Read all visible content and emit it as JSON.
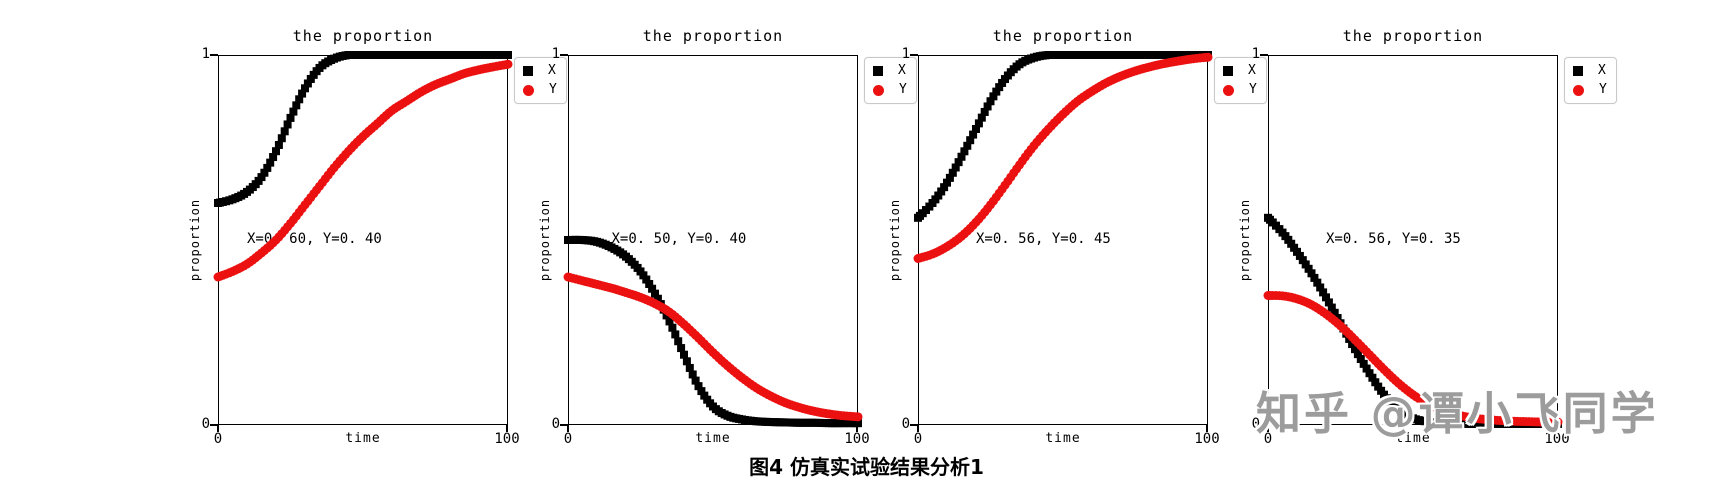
{
  "figure": {
    "caption": "图4  仿真实试验结果分析1",
    "watermark": "知乎 @谭小飞同学"
  },
  "colors": {
    "x_series": "#000000",
    "y_series": "#ec1111",
    "legend_border": "#c9c9c9",
    "watermark_gray": "#9c9c9c"
  },
  "chart_data": [
    {
      "type": "line",
      "title": "the proportion",
      "xlabel": "time",
      "ylabel": "proportion",
      "xlim": [
        0,
        100
      ],
      "ylim": [
        0,
        1
      ],
      "grid": false,
      "legend_position": "outside-upper-right",
      "xtick_labels": [
        "0",
        "100"
      ],
      "ytick_labels": [
        "0",
        "1"
      ],
      "legend": [
        "X",
        "Y"
      ],
      "legend_markers": [
        "black-square",
        "red-circle"
      ],
      "annotation": "X=0. 60, Y=0. 40",
      "annotation_xy": [
        10,
        0.5
      ],
      "x": [
        0,
        5,
        10,
        15,
        20,
        25,
        30,
        35,
        40,
        45,
        50,
        55,
        60,
        65,
        70,
        75,
        80,
        85,
        90,
        95,
        100
      ],
      "series": [
        {
          "name": "X",
          "color_key": "x_series",
          "marker": "square",
          "values": [
            0.6,
            0.61,
            0.63,
            0.67,
            0.74,
            0.83,
            0.91,
            0.965,
            0.99,
            1.0,
            1.0,
            1.0,
            1.0,
            1.0,
            1.0,
            1.0,
            1.0,
            1.0,
            1.0,
            1.0,
            1.0
          ]
        },
        {
          "name": "Y",
          "color_key": "y_series",
          "marker": "circle",
          "values": [
            0.4,
            0.415,
            0.435,
            0.465,
            0.5,
            0.545,
            0.595,
            0.645,
            0.695,
            0.74,
            0.78,
            0.815,
            0.85,
            0.875,
            0.9,
            0.92,
            0.935,
            0.95,
            0.96,
            0.968,
            0.975
          ]
        }
      ]
    },
    {
      "type": "line",
      "title": "the proportion",
      "xlabel": "time",
      "ylabel": "proportion",
      "xlim": [
        0,
        100
      ],
      "ylim": [
        0,
        1
      ],
      "grid": false,
      "legend_position": "outside-upper-right",
      "xtick_labels": [
        "0",
        "100"
      ],
      "ytick_labels": [
        "0",
        "1"
      ],
      "legend": [
        "X",
        "Y"
      ],
      "legend_markers": [
        "black-square",
        "red-circle"
      ],
      "annotation": "X=0. 50, Y=0. 40",
      "annotation_xy": [
        15,
        0.5
      ],
      "x": [
        0,
        5,
        10,
        15,
        20,
        25,
        30,
        35,
        40,
        45,
        50,
        55,
        60,
        65,
        70,
        75,
        80,
        85,
        90,
        95,
        100
      ],
      "series": [
        {
          "name": "X",
          "color_key": "x_series",
          "marker": "square",
          "values": [
            0.5,
            0.5,
            0.495,
            0.48,
            0.455,
            0.415,
            0.355,
            0.28,
            0.19,
            0.105,
            0.05,
            0.025,
            0.015,
            0.01,
            0.008,
            0.007,
            0.006,
            0.006,
            0.005,
            0.005,
            0.005
          ]
        },
        {
          "name": "Y",
          "color_key": "y_series",
          "marker": "circle",
          "values": [
            0.4,
            0.39,
            0.38,
            0.37,
            0.358,
            0.345,
            0.328,
            0.305,
            0.272,
            0.235,
            0.196,
            0.16,
            0.128,
            0.1,
            0.078,
            0.06,
            0.047,
            0.037,
            0.03,
            0.025,
            0.022
          ]
        }
      ]
    },
    {
      "type": "line",
      "title": "the proportion",
      "xlabel": "time",
      "ylabel": "proportion",
      "xlim": [
        0,
        100
      ],
      "ylim": [
        0,
        1
      ],
      "grid": false,
      "legend_position": "outside-upper-right",
      "xtick_labels": [
        "0",
        "100"
      ],
      "ytick_labels": [
        "0",
        "1"
      ],
      "legend": [
        "X",
        "Y"
      ],
      "legend_markers": [
        "black-square",
        "red-circle"
      ],
      "annotation": "X=0. 56, Y=0. 45",
      "annotation_xy": [
        20,
        0.5
      ],
      "x": [
        0,
        5,
        10,
        15,
        20,
        25,
        30,
        35,
        40,
        45,
        50,
        55,
        60,
        65,
        70,
        75,
        80,
        85,
        90,
        95,
        100
      ],
      "series": [
        {
          "name": "X",
          "color_key": "x_series",
          "marker": "square",
          "values": [
            0.56,
            0.6,
            0.655,
            0.725,
            0.8,
            0.875,
            0.935,
            0.975,
            0.993,
            1.0,
            1.0,
            1.0,
            1.0,
            1.0,
            1.0,
            1.0,
            1.0,
            1.0,
            1.0,
            1.0,
            1.0
          ]
        },
        {
          "name": "Y",
          "color_key": "y_series",
          "marker": "circle",
          "values": [
            0.45,
            0.462,
            0.482,
            0.51,
            0.548,
            0.595,
            0.648,
            0.703,
            0.755,
            0.8,
            0.84,
            0.875,
            0.902,
            0.925,
            0.943,
            0.957,
            0.968,
            0.977,
            0.984,
            0.99,
            0.994
          ]
        }
      ]
    },
    {
      "type": "line",
      "title": "the proportion",
      "xlabel": "time",
      "ylabel": "proportion",
      "xlim": [
        0,
        100
      ],
      "ylim": [
        0,
        1
      ],
      "grid": false,
      "legend_position": "outside-upper-right",
      "xtick_labels": [
        "0",
        "100"
      ],
      "ytick_labels": [
        "0",
        "1"
      ],
      "legend": [
        "X",
        "Y"
      ],
      "legend_markers": [
        "black-square",
        "red-circle"
      ],
      "annotation": "X=0. 56, Y=0. 35",
      "annotation_xy": [
        20,
        0.5
      ],
      "x": [
        0,
        5,
        10,
        15,
        20,
        25,
        30,
        35,
        40,
        45,
        50,
        55,
        60,
        65,
        70,
        75,
        80,
        85,
        90,
        95,
        100
      ],
      "series": [
        {
          "name": "X",
          "color_key": "x_series",
          "marker": "square",
          "values": [
            0.56,
            0.52,
            0.468,
            0.41,
            0.345,
            0.275,
            0.205,
            0.14,
            0.082,
            0.04,
            0.018,
            0.009,
            0.005,
            0.004,
            0.003,
            0.003,
            0.003,
            0.003,
            0.003,
            0.003,
            0.003
          ]
        },
        {
          "name": "Y",
          "color_key": "y_series",
          "marker": "circle",
          "values": [
            0.35,
            0.349,
            0.341,
            0.325,
            0.3,
            0.268,
            0.23,
            0.19,
            0.15,
            0.113,
            0.082,
            0.058,
            0.04,
            0.028,
            0.02,
            0.015,
            0.012,
            0.01,
            0.009,
            0.008,
            0.008
          ]
        }
      ]
    }
  ]
}
